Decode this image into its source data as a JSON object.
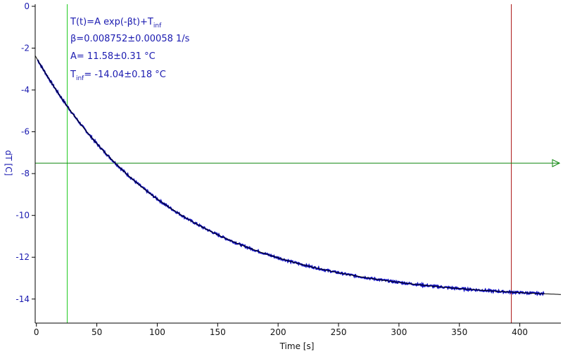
{
  "chart_data": {
    "type": "line",
    "xlabel": "Time [s]",
    "ylabel": "dT [C]",
    "xlim": [
      -1,
      434
    ],
    "ylim": [
      -15.15,
      0.1
    ],
    "x_ticks": [
      0,
      50,
      100,
      150,
      200,
      250,
      300,
      350,
      400
    ],
    "y_ticks": [
      0,
      -2,
      -4,
      -6,
      -8,
      -10,
      -12,
      -14
    ],
    "grid": false,
    "fit": {
      "line1_text": "T(t)=A exp(-βt)+T",
      "line1_sub": "inf",
      "line2_text": "β=0.008752±0.00058 1/s",
      "line3_text": "A= 11.58±0.31 °C",
      "line4_prefix": "T",
      "line4_sub": "inf",
      "line4_text": "= -14.04±0.18 °C",
      "A": 11.58,
      "beta": 0.008752,
      "T_inf": -14.04,
      "x_range": [
        -1,
        434
      ]
    },
    "series": [
      {
        "data_x_range": [
          1,
          420
        ],
        "data_x_start": 1,
        "data_x_end": 420
      }
    ],
    "markers": {
      "vline_green_x": 25.5,
      "vline_red_x": 393,
      "hline_green_y": -7.5
    },
    "colors": {
      "data": "#1010c0",
      "fit": "#000000",
      "vline_green": "#22cc22",
      "vline_red": "#aa1010",
      "hline_green": "#118811",
      "axis": "#000000",
      "ytick_text": "#1a1ab0"
    }
  }
}
